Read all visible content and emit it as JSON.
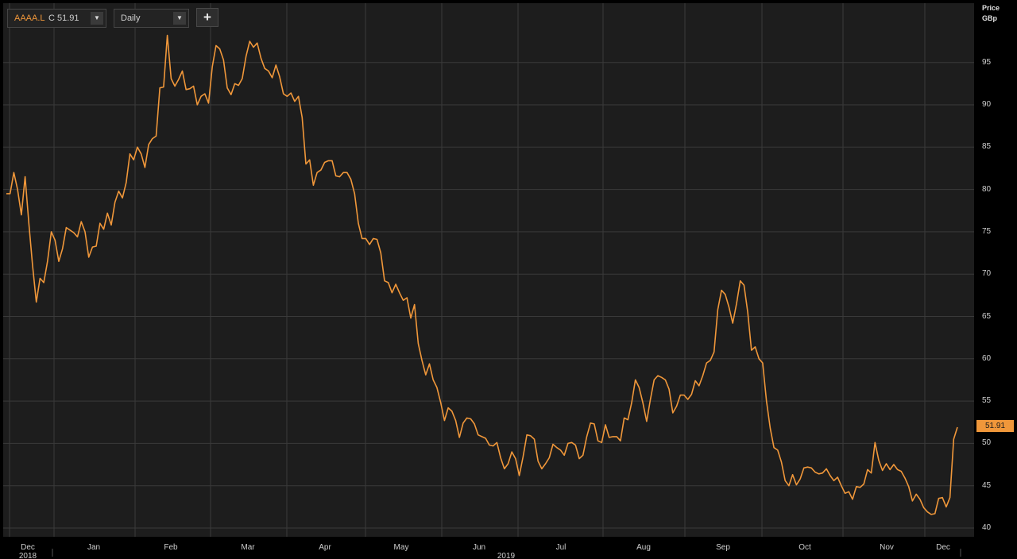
{
  "toolbar": {
    "ticker_symbol": "AAAA.L",
    "ticker_value": "C 51.91",
    "interval": "Daily",
    "add_label": "+",
    "dropdown_arrow": "▼"
  },
  "axis": {
    "price_label": "Price",
    "unit_label": "GBp"
  },
  "last_price": "51.91",
  "colors": {
    "line": "#f0973a",
    "background": "#1d1d1d",
    "grid": "#3a3a3a"
  },
  "chart_data": {
    "type": "line",
    "title": "",
    "ylabel": "Price GBp",
    "ylim": [
      39.4,
      100.4
    ],
    "yticks": [
      40,
      45,
      50,
      55,
      60,
      65,
      70,
      75,
      80,
      85,
      90,
      95
    ],
    "xticks": [
      "Dec",
      "Jan",
      "Feb",
      "Mar",
      "Apr",
      "May",
      "Jun",
      "Jul",
      "Aug",
      "Sep",
      "Oct",
      "Nov",
      "Dec"
    ],
    "year_labels": [
      "2018",
      "2019"
    ],
    "grid": true,
    "series": [
      {
        "values": [
          79.5,
          79.5,
          82.0,
          80.0,
          77.0,
          81.5,
          76.0,
          71.0,
          66.7,
          69.5,
          69.0,
          71.5,
          75.0,
          74.0,
          71.5,
          73.0,
          75.5,
          75.2,
          74.9,
          74.4,
          76.2,
          75.0,
          72.0,
          73.2,
          73.3,
          76.0,
          75.3,
          77.2,
          75.8,
          78.5,
          79.8,
          79.0,
          80.8,
          84.2,
          83.5,
          85.0,
          84.2,
          82.6,
          85.3,
          86.0,
          86.3,
          92.0,
          92.1,
          98.2,
          93.1,
          92.2,
          93.0,
          94.0,
          91.8,
          91.9,
          92.2,
          90.0,
          91.0,
          91.3,
          90.2,
          94.5,
          97.0,
          96.6,
          95.3,
          92.0,
          91.2,
          92.5,
          92.3,
          93.1,
          95.7,
          97.5,
          96.8,
          97.3,
          95.5,
          94.3,
          94.0,
          93.2,
          94.7,
          93.3,
          91.3,
          91.0,
          91.4,
          90.4,
          91.0,
          88.5,
          83.0,
          83.5,
          80.5,
          82.0,
          82.3,
          83.2,
          83.4,
          83.4,
          81.6,
          81.5,
          82.0,
          82.0,
          81.2,
          79.5,
          76.0,
          74.2,
          74.2,
          73.5,
          74.2,
          74.1,
          72.5,
          69.2,
          69.0,
          67.8,
          68.8,
          67.8,
          66.9,
          67.2,
          64.8,
          66.4,
          61.8,
          59.8,
          58.1,
          59.4,
          57.5,
          56.6,
          54.8,
          52.7,
          54.2,
          53.8,
          52.7,
          50.7,
          52.4,
          53.0,
          52.9,
          52.3,
          51.0,
          50.8,
          50.6,
          49.8,
          49.7,
          50.1,
          48.3,
          47.0,
          47.6,
          49.0,
          48.2,
          46.2,
          48.4,
          51.0,
          50.9,
          50.5,
          47.9,
          47.0,
          47.6,
          48.3,
          49.9,
          49.5,
          49.2,
          48.6,
          50.0,
          50.1,
          49.8,
          48.2,
          48.6,
          50.8,
          52.4,
          52.3,
          50.3,
          50.1,
          52.2,
          50.7,
          50.8,
          50.8,
          50.3,
          53.0,
          52.8,
          54.8,
          57.5,
          56.6,
          54.8,
          52.6,
          55.2,
          57.5,
          58.0,
          57.8,
          57.5,
          56.4,
          53.6,
          54.4,
          55.7,
          55.7,
          55.2,
          55.8,
          57.4,
          56.8,
          58.0,
          59.5,
          59.8,
          60.8,
          65.8,
          68.1,
          67.6,
          66.1,
          64.2,
          66.5,
          69.2,
          68.7,
          65.5,
          61.0,
          61.4,
          60.0,
          59.5,
          55.0,
          51.8,
          49.5,
          49.2,
          47.8,
          45.6,
          45.0,
          46.3,
          45.1,
          45.8,
          47.1,
          47.2,
          47.1,
          46.6,
          46.4,
          46.5,
          47.0,
          46.2,
          45.6,
          46.0,
          45.0,
          44.1,
          44.3,
          43.4,
          44.9,
          44.8,
          45.2,
          46.9,
          46.5,
          50.1,
          48.0,
          46.8,
          47.6,
          46.9,
          47.5,
          46.9,
          46.7,
          45.9,
          44.9,
          43.2,
          44.0,
          43.4,
          42.4,
          41.9,
          41.6,
          41.7,
          43.5,
          43.6,
          42.5,
          43.6,
          50.5,
          51.91
        ]
      }
    ]
  }
}
